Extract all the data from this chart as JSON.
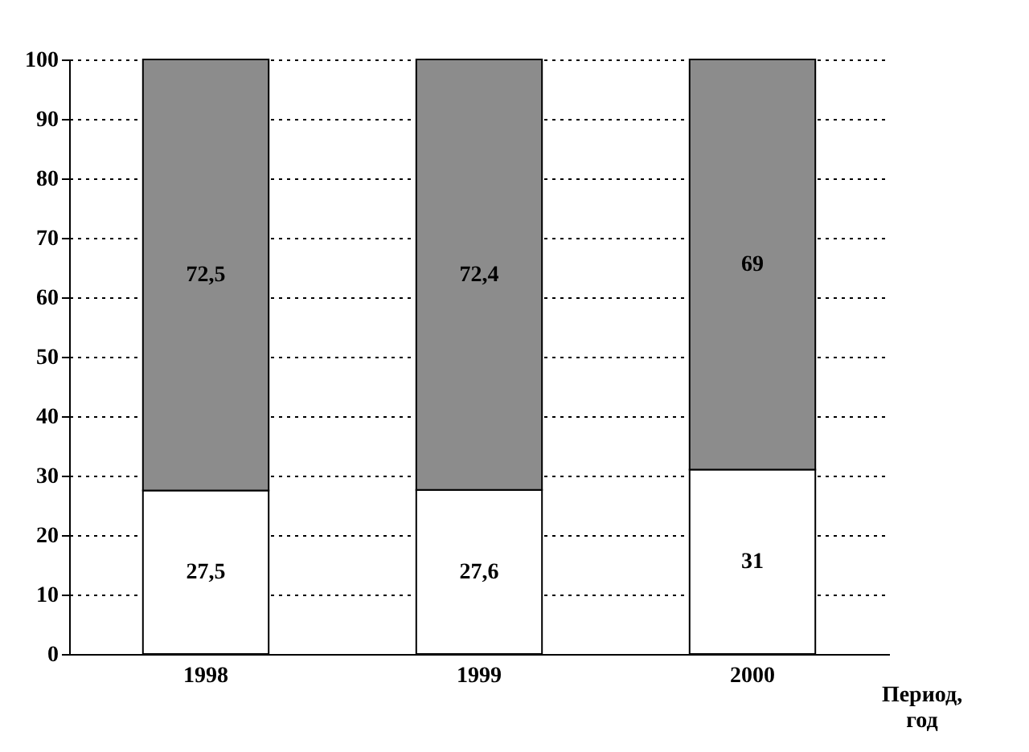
{
  "chart_data": {
    "type": "bar",
    "stacked": true,
    "xlabel": "Период, год",
    "categories": [
      "1998",
      "1999",
      "2000"
    ],
    "series": [
      {
        "color": "#ffffff",
        "values": [
          27.5,
          27.6,
          31
        ],
        "value_labels": [
          "27,5",
          "27,6",
          "31"
        ]
      },
      {
        "color": "#8c8c8c",
        "values": [
          72.5,
          72.4,
          69
        ],
        "value_labels": [
          "72,5",
          "72,4",
          "69"
        ]
      }
    ],
    "ylim": [
      0,
      100
    ],
    "yticks": [
      0,
      10,
      20,
      30,
      40,
      50,
      60,
      70,
      80,
      90,
      100
    ],
    "grid": "y",
    "legend": false
  }
}
